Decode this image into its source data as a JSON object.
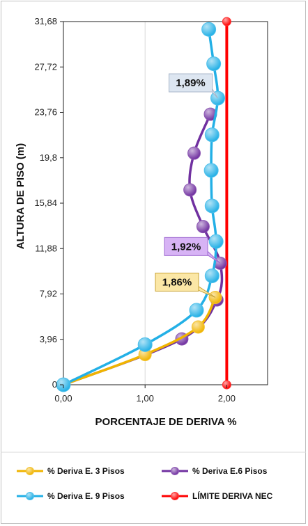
{
  "chart_data": {
    "type": "line",
    "xlabel": "PORCENTAJE DE DERIVA %",
    "ylabel": "ALTURA DE PISO (m)",
    "xlim": [
      0,
      2.5
    ],
    "ylim": [
      0,
      31.68
    ],
    "x_ticks": [
      "0,00",
      "1,00",
      "2,00"
    ],
    "x_tick_values": [
      0,
      1,
      2
    ],
    "y_ticks": [
      "0",
      "3,96",
      "7,92",
      "11,88",
      "15,84",
      "19,8",
      "23,76",
      "27,72",
      "31,68"
    ],
    "y_tick_values": [
      0,
      3.96,
      7.92,
      11.88,
      15.84,
      19.8,
      23.76,
      27.72,
      31.68
    ],
    "grid": "vertical",
    "legend_position": "bottom",
    "series": [
      {
        "name": "% Deriva E. 3 Pisos",
        "color": "#f0b400",
        "x": [
          0,
          1.0,
          1.65,
          1.86
        ],
        "y": [
          0,
          2.64,
          5.04,
          7.62
        ]
      },
      {
        "name": "% Deriva E.6 Pisos",
        "color": "#7030a0",
        "x": [
          0,
          1.45,
          1.88,
          1.92,
          1.71,
          1.55,
          1.6,
          1.8
        ],
        "y": [
          0,
          4.0,
          7.4,
          10.6,
          13.8,
          17.0,
          20.2,
          23.6
        ]
      },
      {
        "name": "% Deriva  E. 9 Pisos",
        "color": "#23b0e6",
        "x": [
          0,
          1.0,
          1.63,
          1.82,
          1.87,
          1.82,
          1.81,
          1.82,
          1.89,
          1.84,
          1.78
        ],
        "y": [
          0,
          3.5,
          6.5,
          9.5,
          12.5,
          15.6,
          18.7,
          21.8,
          25.0,
          28.0,
          31.0
        ]
      },
      {
        "name": "LÍMITE DERIVA NEC",
        "color": "#ff0000",
        "x": [
          2.0,
          2.0
        ],
        "y": [
          0,
          31.68
        ]
      }
    ],
    "annotations": [
      {
        "text": "1,86%",
        "series": 0,
        "x": 1.86,
        "y": 7.62
      },
      {
        "text": "1,92%",
        "series": 1,
        "x": 1.92,
        "y": 10.6
      },
      {
        "text": "1,89%",
        "series": 2,
        "x": 1.89,
        "y": 25.0
      }
    ]
  }
}
